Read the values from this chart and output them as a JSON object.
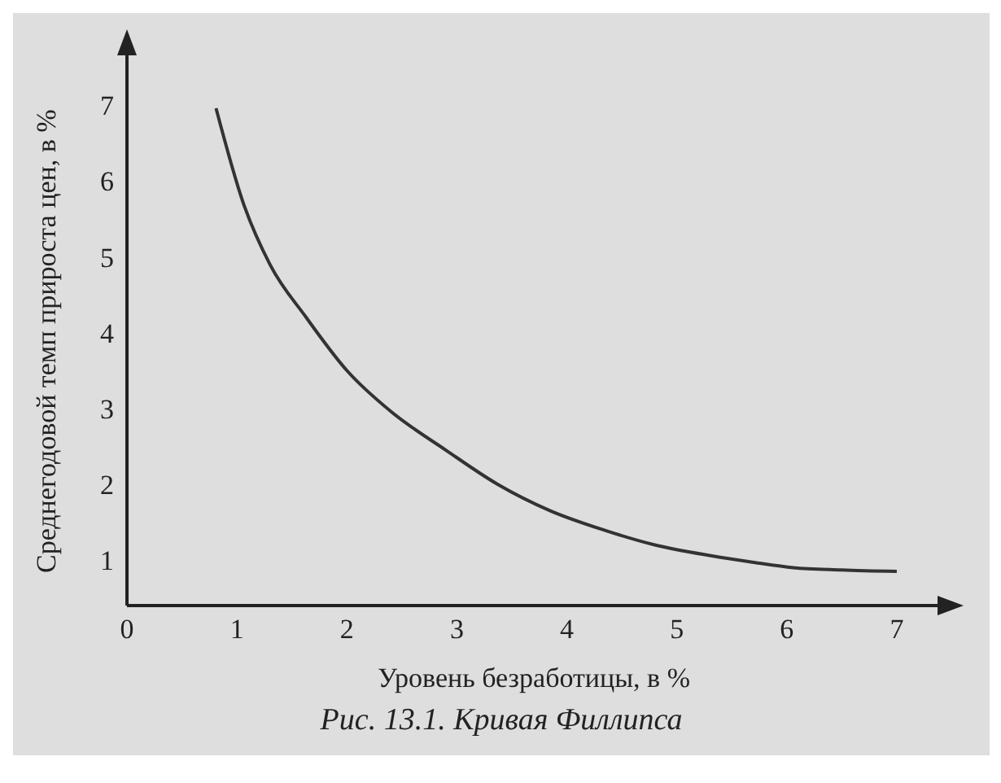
{
  "chart_data": {
    "type": "line",
    "title": "Рис. 13.1. Кривая Филлипса",
    "xlabel": "Уровень безработицы, в %",
    "ylabel": "Среднегодовой темп прироста цен, в %",
    "series": [
      {
        "color": "#333333",
        "x": [
          0.81,
          1.06,
          1.3,
          1.63,
          2.0,
          2.4,
          2.9,
          3.37,
          3.85,
          4.33,
          4.8,
          5.3,
          5.7,
          6.06,
          6.5,
          7.0
        ],
        "values": [
          6.96,
          5.7,
          4.9,
          4.2,
          3.5,
          2.96,
          2.45,
          2.0,
          1.65,
          1.4,
          1.2,
          1.06,
          0.97,
          0.9,
          0.87,
          0.85
        ]
      }
    ],
    "xlim": [
      0,
      7.4
    ],
    "xticks": [
      0,
      1,
      2,
      3,
      4,
      5,
      6,
      7
    ],
    "ylim": [
      0.4,
      7.7
    ],
    "yticks": [
      1,
      2,
      3,
      4,
      5,
      6,
      7
    ],
    "grid": false,
    "marker": "none",
    "line_style": "solid"
  }
}
